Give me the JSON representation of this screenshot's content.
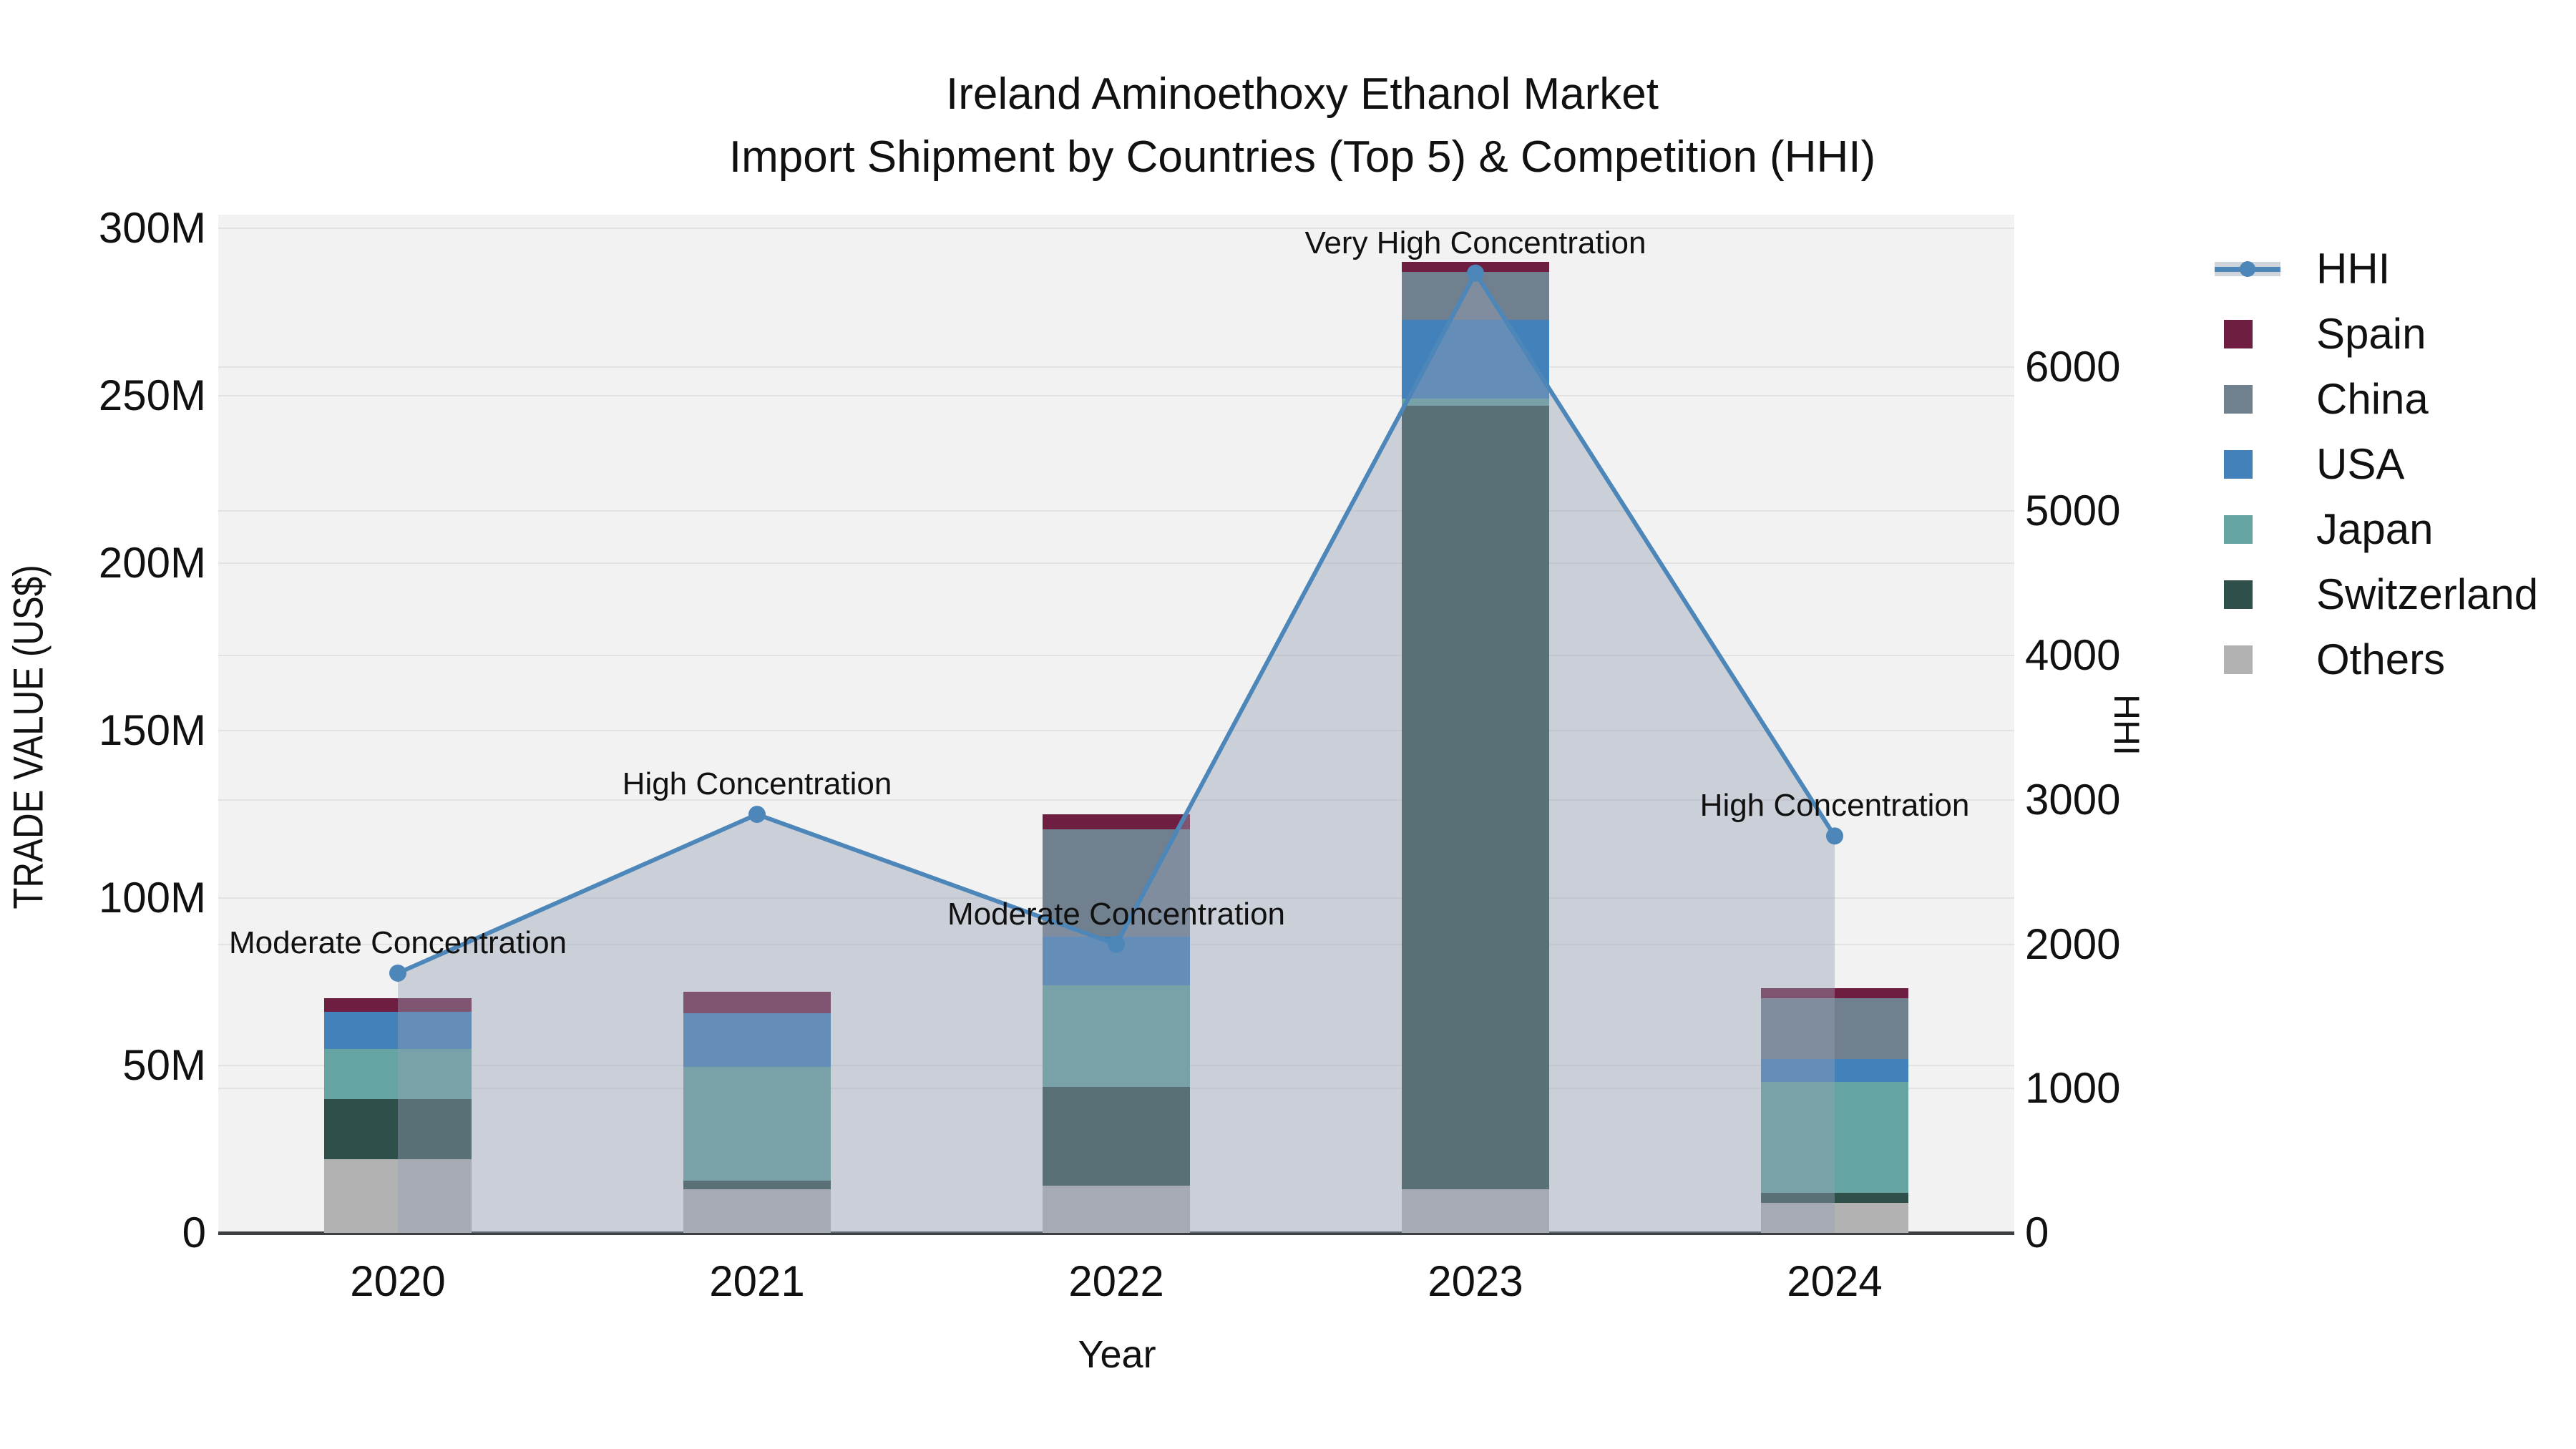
{
  "title": {
    "line1": "Ireland Aminoethoxy Ethanol Market",
    "line2": "Import Shipment by Countries (Top 5) & Competition (HHI)"
  },
  "colors": {
    "plot_background": "#f2f2f3",
    "gridline": "#e2e2e5",
    "axis_line": "#3c4043",
    "hhi_line": "#4d86b8",
    "hhi_area_fill": "rgba(148,160,178,0.42)",
    "spain": "#6e1e40",
    "china": "#70808f",
    "usa": "#4381bb",
    "japan": "#66a4a1",
    "switzerland": "#2f4f4a",
    "others": "#b2b2b3"
  },
  "legend": {
    "items": [
      {
        "label": "HHI",
        "type": "line",
        "color": "#4d86b8"
      },
      {
        "label": "Spain",
        "type": "swatch",
        "color": "#6e1e40"
      },
      {
        "label": "China",
        "type": "swatch",
        "color": "#70808f"
      },
      {
        "label": "USA",
        "type": "swatch",
        "color": "#4381bb"
      },
      {
        "label": "Japan",
        "type": "swatch",
        "color": "#66a4a1"
      },
      {
        "label": "Switzerland",
        "type": "swatch",
        "color": "#2f4f4a"
      },
      {
        "label": "Others",
        "type": "swatch",
        "color": "#b2b2b3"
      }
    ]
  },
  "chart_data": {
    "type": "bar",
    "subtype": "stacked-bars-with-line-area",
    "categories": [
      "2020",
      "2021",
      "2022",
      "2023",
      "2024"
    ],
    "bar_value_unit": "million US$",
    "series": [
      {
        "name": "Spain",
        "color": "#6e1e40",
        "values": [
          4,
          6.5,
          4.5,
          3,
          3
        ]
      },
      {
        "name": "China",
        "color": "#70808f",
        "values": [
          0,
          0,
          32,
          14.5,
          18
        ]
      },
      {
        "name": "USA",
        "color": "#4381bb",
        "values": [
          11,
          16,
          14.5,
          23.5,
          7
        ]
      },
      {
        "name": "Japan",
        "color": "#66a4a1",
        "values": [
          15,
          34,
          30.5,
          2,
          33
        ]
      },
      {
        "name": "Switzerland",
        "color": "#2f4f4a",
        "values": [
          18,
          2.5,
          29.5,
          234,
          3
        ]
      },
      {
        "name": "Others",
        "color": "#b2b2b3",
        "values": [
          22,
          13,
          14,
          13,
          9
        ]
      }
    ],
    "stack_order_bottom_to_top": [
      "Others",
      "Switzerland",
      "Japan",
      "USA",
      "China",
      "Spain"
    ],
    "bar_totals": [
      70,
      72,
      125,
      290,
      73
    ],
    "line_series": {
      "name": "HHI",
      "color": "#4d86b8",
      "values": [
        1800,
        2900,
        2000,
        6650,
        2750
      ],
      "area_under_line": true
    },
    "annotations": [
      "Moderate Concentration",
      "High Concentration",
      "Moderate Concentration",
      "Very High Concentration",
      "High Concentration"
    ],
    "axis_left": {
      "label": "TRADE VALUE (US$)",
      "ticks": [
        "0",
        "50M",
        "100M",
        "150M",
        "200M",
        "250M",
        "300M"
      ],
      "tick_values": [
        0,
        50,
        100,
        150,
        200,
        250,
        300
      ],
      "max": 304
    },
    "axis_right": {
      "label": "HHI",
      "ticks": [
        "0",
        "1000",
        "2000",
        "3000",
        "4000",
        "5000",
        "6000"
      ],
      "tick_values": [
        0,
        1000,
        2000,
        3000,
        4000,
        5000,
        6000
      ],
      "max": 7055
    },
    "axis_x": {
      "label": "Year"
    },
    "grid": true,
    "legend_position": "right-outside"
  }
}
